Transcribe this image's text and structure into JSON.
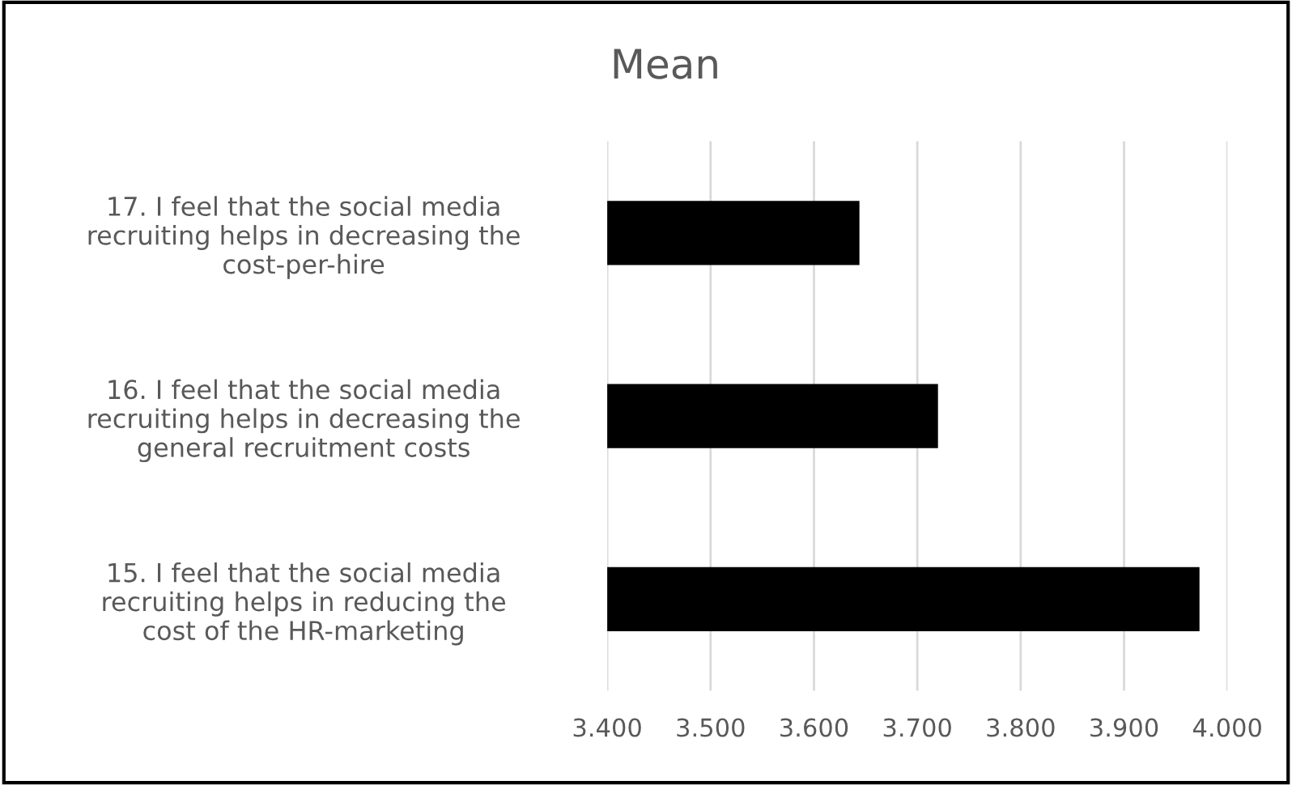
{
  "chart_data": {
    "type": "bar",
    "orientation": "horizontal",
    "title": "Mean",
    "categories": [
      "17. I feel that the social media\nrecruiting helps in decreasing the\ncost-per-hire",
      "16. I feel that the social media\nrecruiting helps in decreasing the\ngeneral recruitment costs",
      "15. I feel that the social media\nrecruiting helps in reducing the\ncost of the HR-marketing"
    ],
    "values": [
      3.644,
      3.72,
      3.973
    ],
    "color": "#000000",
    "xlim": [
      3.4,
      4.0
    ],
    "xticks": [
      {
        "value": 3.4,
        "label": "3.400"
      },
      {
        "value": 3.5,
        "label": "3.500"
      },
      {
        "value": 3.6,
        "label": "3.600"
      },
      {
        "value": 3.7,
        "label": "3.700"
      },
      {
        "value": 3.8,
        "label": "3.800"
      },
      {
        "value": 3.9,
        "label": "3.900"
      },
      {
        "value": 4.0,
        "label": "4.000"
      }
    ],
    "grid": "x",
    "legend": false
  }
}
